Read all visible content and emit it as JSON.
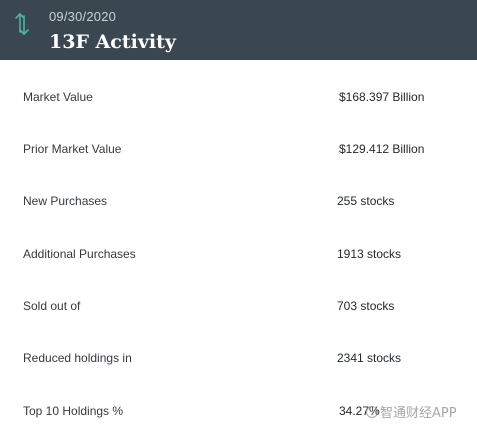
{
  "header": {
    "date": "09/30/2020",
    "title": "13F Activity",
    "icon": "sort-arrows-icon",
    "icon_color": "#4fb3a3",
    "background": "#3a4750"
  },
  "rows": [
    {
      "label": "Market Value",
      "value": "$168.397 Billion"
    },
    {
      "label": "Prior Market Value",
      "value": "$129.412 Billion"
    },
    {
      "label": "New Purchases",
      "value": "255 stocks"
    },
    {
      "label": "Additional Purchases",
      "value": "1913 stocks"
    },
    {
      "label": "Sold out of",
      "value": "703 stocks"
    },
    {
      "label": "Reduced holdings in",
      "value": "2341 stocks"
    },
    {
      "label": "Top 10 Holdings %",
      "value": "34.27%"
    }
  ],
  "watermark": {
    "text": "智通财经APP"
  }
}
